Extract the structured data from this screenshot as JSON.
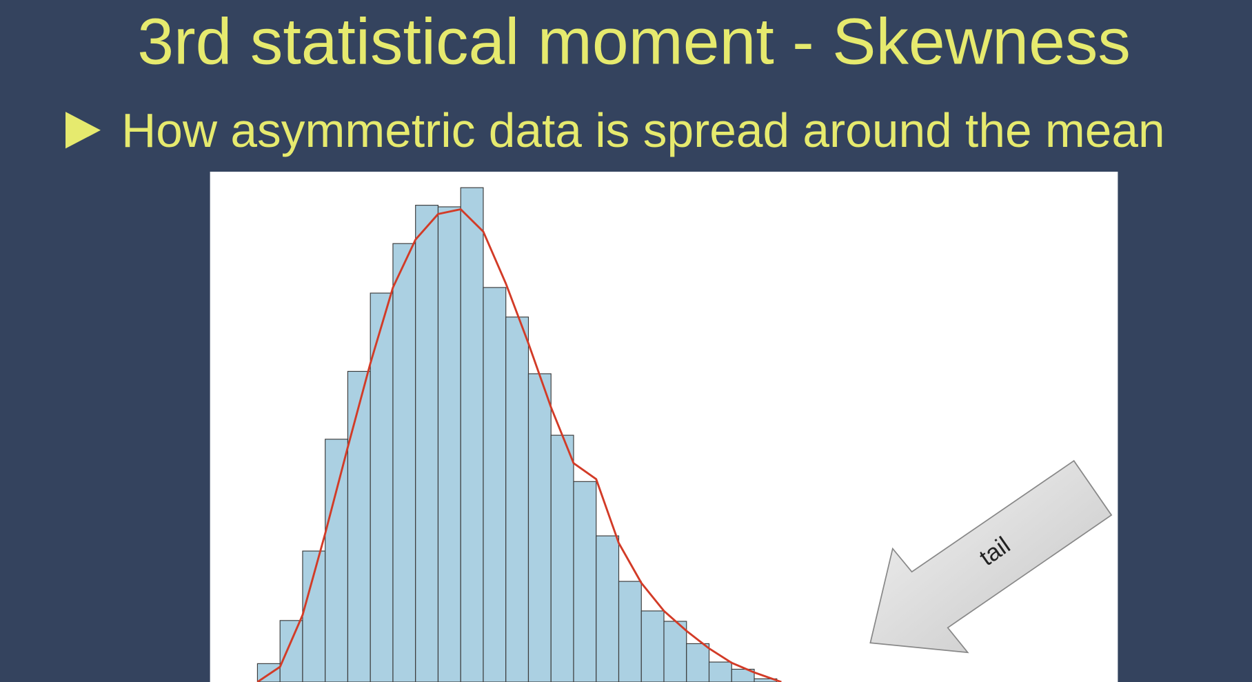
{
  "chart_data": {
    "type": "histogram",
    "title": "3rd statistical moment - Skewness",
    "subtitle": "How asymmetric data is spread around the mean",
    "annotation": "tail",
    "bins": [
      0,
      1,
      2,
      3,
      4,
      5,
      6,
      7,
      8,
      9,
      10,
      11,
      12,
      13,
      14,
      15,
      16,
      17,
      18,
      19,
      20,
      21,
      22,
      23
    ],
    "counts": [
      23,
      77,
      164,
      304,
      389,
      487,
      549,
      597,
      595,
      619,
      494,
      457,
      386,
      309,
      251,
      183,
      126,
      89,
      76,
      48,
      25,
      16,
      4
    ],
    "color": "#abd0e2",
    "xlim": [
      -2.1,
      38.1
    ],
    "ylim": [
      0,
      639
    ],
    "curve": {
      "color": "#d23b27",
      "x": [
        0,
        1,
        2,
        3,
        4,
        5,
        6,
        7,
        8,
        9,
        10,
        11,
        12,
        13,
        14,
        15,
        16,
        17,
        18,
        19,
        20,
        21,
        22,
        23.2
      ],
      "values": [
        0,
        19,
        84,
        186,
        294,
        399,
        494,
        554,
        586,
        592,
        564,
        499,
        424,
        344,
        274,
        254,
        174,
        124,
        89,
        64,
        42,
        24,
        12,
        0
      ]
    }
  }
}
